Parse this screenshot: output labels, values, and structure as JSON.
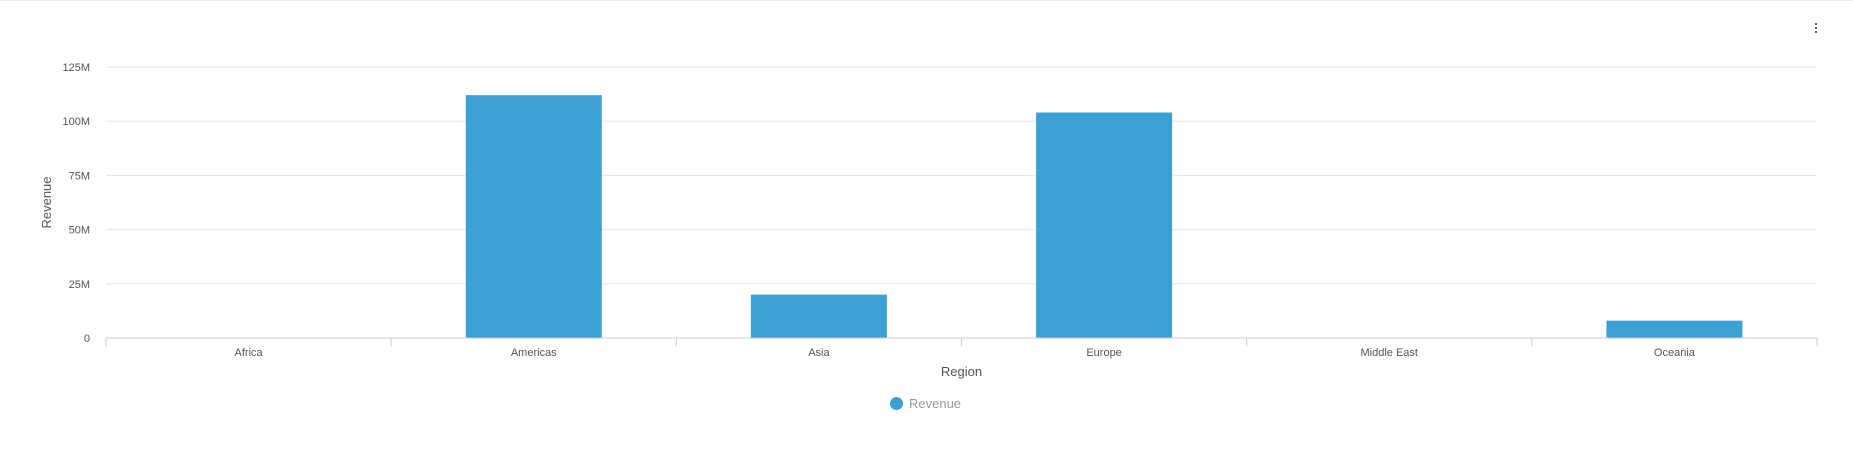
{
  "chart_data": {
    "type": "bar",
    "categories": [
      "Africa",
      "Americas",
      "Asia",
      "Europe",
      "Middle East",
      "Oceania"
    ],
    "series": [
      {
        "name": "Revenue",
        "values": [
          0,
          112000000,
          20000000,
          104000000,
          0,
          8000000
        ]
      }
    ],
    "xlabel": "Region",
    "ylabel": "Revenue",
    "ylim": [
      0,
      125000000
    ],
    "yticks": [
      {
        "value": 0,
        "label": "0"
      },
      {
        "value": 25000000,
        "label": "25M"
      },
      {
        "value": 50000000,
        "label": "50M"
      },
      {
        "value": 75000000,
        "label": "75M"
      },
      {
        "value": 100000000,
        "label": "100M"
      },
      {
        "value": 125000000,
        "label": "125M"
      }
    ],
    "grid": true,
    "legend_position": "bottom-center",
    "colors": {
      "bar": "#3ba1d5",
      "grid": "#e6e6e6",
      "axis": "#cccccc"
    }
  },
  "legend": {
    "label": "Revenue"
  },
  "menu": {
    "icon": "more-vertical-icon"
  }
}
